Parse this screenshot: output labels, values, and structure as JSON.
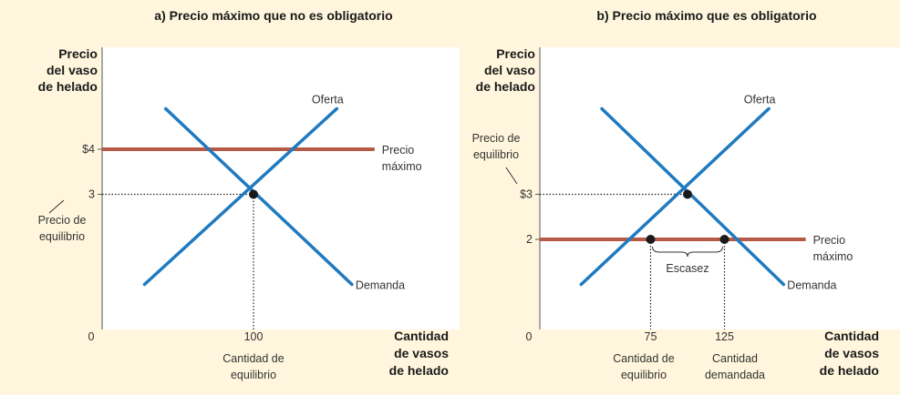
{
  "colors": {
    "background": "#FFF6DD",
    "plot_area": "#FFFFFF",
    "curves": "#1F7AC0",
    "price_ceiling": "#B55A47",
    "axis": "#555555",
    "points": "#1a1a1a"
  },
  "chart_data": [
    {
      "type": "line",
      "title": "a) Precio máximo que no es obligatorio",
      "ylabel": [
        "Precio",
        "del vaso",
        "de helado"
      ],
      "xlabel": [
        "Cantidad",
        "de vasos",
        "de helado"
      ],
      "origin_label": "0",
      "x_ticks": [
        {
          "value": 100,
          "label": "100"
        }
      ],
      "y_ticks": [
        {
          "value": 3,
          "label": "3"
        },
        {
          "value": 4,
          "label": "$4"
        }
      ],
      "xlim": [
        0,
        200
      ],
      "ylim": [
        0,
        5.5
      ],
      "series": [
        {
          "name": "Oferta",
          "points": [
            [
              28,
              1.0
            ],
            [
              155,
              4.9
            ]
          ]
        },
        {
          "name": "Demanda",
          "points": [
            [
              42,
              4.9
            ],
            [
              165,
              1.0
            ]
          ]
        },
        {
          "name": "Precio máximo",
          "label_lines": [
            "Precio",
            "máximo"
          ],
          "points": [
            [
              0,
              4
            ],
            [
              180,
              4
            ]
          ]
        }
      ],
      "equilibrium": {
        "x": 100,
        "y": 3
      },
      "annotations": {
        "y_equilibrium_label": [
          "Precio de",
          "equilibrio"
        ],
        "x_equilibrium_label": [
          "Cantidad de",
          "equilibrio"
        ]
      }
    },
    {
      "type": "line",
      "title": "b) Precio máximo que es obligatorio",
      "ylabel": [
        "Precio",
        "del vaso",
        "de helado"
      ],
      "xlabel": [
        "Cantidad",
        "de vasos",
        "de helado"
      ],
      "origin_label": "0",
      "x_ticks": [
        {
          "value": 75,
          "label": "75"
        },
        {
          "value": 125,
          "label": "125"
        }
      ],
      "y_ticks": [
        {
          "value": 2,
          "label": "2"
        },
        {
          "value": 3,
          "label": "$3"
        }
      ],
      "xlim": [
        0,
        200
      ],
      "ylim": [
        0,
        5.5
      ],
      "series": [
        {
          "name": "Oferta",
          "points": [
            [
              28,
              1.0
            ],
            [
              155,
              4.9
            ]
          ]
        },
        {
          "name": "Demanda",
          "points": [
            [
              42,
              4.9
            ],
            [
              165,
              1.0
            ]
          ]
        },
        {
          "name": "Precio máximo",
          "label_lines": [
            "Precio",
            "máximo"
          ],
          "points": [
            [
              0,
              2
            ],
            [
              180,
              2
            ]
          ]
        }
      ],
      "equilibrium": {
        "x": 100,
        "y": 3
      },
      "ceiling_points": [
        {
          "x": 75,
          "y": 2
        },
        {
          "x": 125,
          "y": 2
        }
      ],
      "annotations": {
        "y_equilibrium_label": [
          "Precio de",
          "equilibrio"
        ],
        "shortage_label": "Escasez",
        "x_tick_labels_below": [
          [
            "Cantidad de",
            "equilibrio"
          ],
          [
            "Cantidad",
            "demandada"
          ]
        ]
      }
    }
  ]
}
